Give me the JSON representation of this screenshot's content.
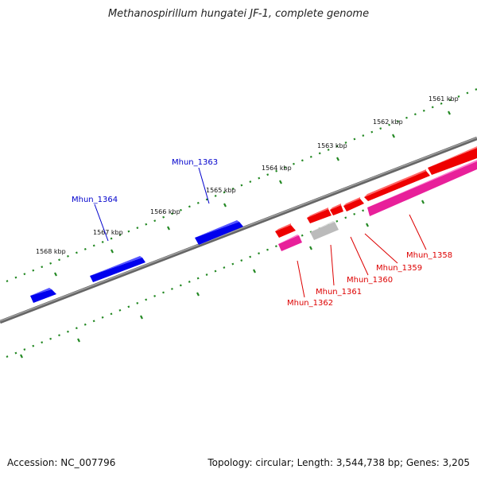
{
  "title": "Methanospirillum hungatei JF-1, complete genome",
  "footer": {
    "accession": "Accession: NC_007796",
    "topology": "Topology: circular; Length: 3,544,738 bp; Genes: 3,205"
  },
  "scale_labels": {
    "kbp_1561": "1561 kbp",
    "kbp_1562": "1562 kbp",
    "kbp_1563": "1563 kbp",
    "kbp_1564": "1564 kbp",
    "kbp_1565": "1565 kbp",
    "kbp_1566": "1566 kbp",
    "kbp_1567": "1567 kbp",
    "kbp_1568": "1568 kbp"
  },
  "genes": {
    "mhun_1364": "Mhun_1364",
    "mhun_1363": "Mhun_1363",
    "mhun_1362": "Mhun_1362",
    "mhun_1361": "Mhun_1361",
    "mhun_1360": "Mhun_1360",
    "mhun_1359": "Mhun_1359",
    "mhun_1358": "Mhun_1358"
  },
  "colors": {
    "forward_strand_gene": "#0000ee",
    "reverse_strand_gene": "#ee0000",
    "rna_gene": "#e8209a",
    "pseudo_gene": "#bbbbbb",
    "backbone": "#777777",
    "ticks": "#228822",
    "label_blue": "#0000cc",
    "label_red": "#dd0000"
  }
}
